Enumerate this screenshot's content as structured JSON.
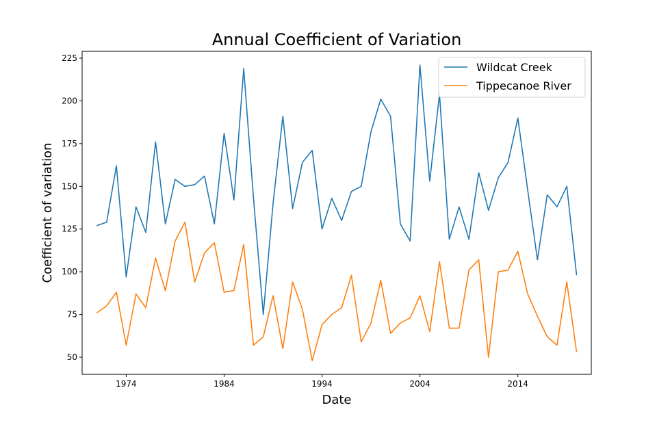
{
  "chart_data": {
    "type": "line",
    "title": "Annual Coefficient of Variation",
    "xlabel": "Date",
    "ylabel": "Coefficient of variation",
    "x": [
      1971,
      1972,
      1973,
      1974,
      1975,
      1976,
      1977,
      1978,
      1979,
      1980,
      1981,
      1982,
      1983,
      1984,
      1985,
      1986,
      1987,
      1988,
      1989,
      1990,
      1991,
      1992,
      1993,
      1994,
      1995,
      1996,
      1997,
      1998,
      1999,
      2000,
      2001,
      2002,
      2003,
      2004,
      2005,
      2006,
      2007,
      2008,
      2009,
      2010,
      2011,
      2012,
      2013,
      2014,
      2015,
      2016,
      2017,
      2018,
      2019,
      2020
    ],
    "xlim": [
      1969.5,
      2021.5
    ],
    "ylim": [
      40,
      229
    ],
    "xticks": [
      1974,
      1984,
      1994,
      2004,
      2014
    ],
    "yticks": [
      50,
      75,
      100,
      125,
      150,
      175,
      200,
      225
    ],
    "grid": false,
    "legend_position": "upper right",
    "series": [
      {
        "name": "Wildcat Creek",
        "color": "#1f77b4",
        "values": [
          127,
          129,
          162,
          97,
          138,
          123,
          176,
          128,
          154,
          150,
          151,
          156,
          128,
          181,
          142,
          219,
          143,
          75,
          140,
          191,
          137,
          164,
          171,
          125,
          143,
          130,
          147,
          150,
          182,
          201,
          191,
          128,
          118,
          221,
          153,
          204,
          119,
          138,
          119,
          158,
          136,
          155,
          164,
          190,
          148,
          107,
          145,
          138,
          150,
          98
        ]
      },
      {
        "name": "Tippecanoe River",
        "color": "#ff7f0e",
        "values": [
          76,
          80,
          88,
          57,
          87,
          79,
          108,
          89,
          118,
          129,
          94,
          111,
          117,
          88,
          89,
          116,
          57,
          62,
          86,
          55,
          94,
          78,
          48,
          69,
          75,
          79,
          98,
          59,
          70,
          95,
          64,
          70,
          73,
          86,
          65,
          106,
          67,
          67,
          101,
          107,
          50,
          100,
          101,
          112,
          87,
          74,
          62,
          57,
          94,
          53
        ]
      }
    ]
  }
}
